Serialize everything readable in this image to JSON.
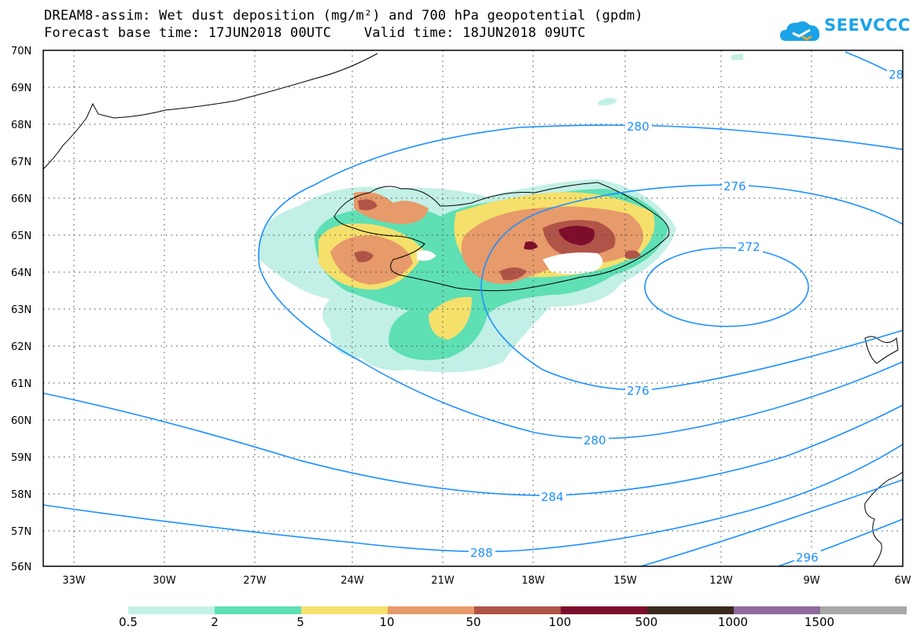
{
  "title": {
    "line1": "DREAM8-assim: Wet dust deposition (mg/m²) and 700 hPa geopotential (gpdm)",
    "line2": "Forecast base time: 17JUN2018 00UTC    Valid time: 18JUN2018 09UTC"
  },
  "logo": {
    "text": "SEEVCCC",
    "icon": "cloud-logo-icon",
    "color": "#1aa3e8"
  },
  "map": {
    "lat_labels": [
      "70N",
      "69N",
      "68N",
      "67N",
      "66N",
      "65N",
      "64N",
      "63N",
      "62N",
      "61N",
      "60N",
      "59N",
      "58N",
      "57N",
      "56N"
    ],
    "lon_labels": [
      "33W",
      "30W",
      "27W",
      "24W",
      "21W",
      "18W",
      "15W",
      "12W",
      "9W",
      "6W"
    ],
    "contour_labels": [
      "280",
      "276",
      "272",
      "276",
      "280",
      "284",
      "288",
      "296",
      "28"
    ],
    "contour_color": "#1e90ff"
  },
  "legend": {
    "labels": [
      "0.5",
      "2",
      "5",
      "10",
      "50",
      "100",
      "500",
      "1000",
      "1500"
    ],
    "colors": [
      "#c2f0e6",
      "#5fdfb4",
      "#f5e06b",
      "#e79a6a",
      "#b05448",
      "#7d0d2a",
      "#3a2a1e",
      "#8c6a9c",
      "#a8a8a8"
    ]
  }
}
